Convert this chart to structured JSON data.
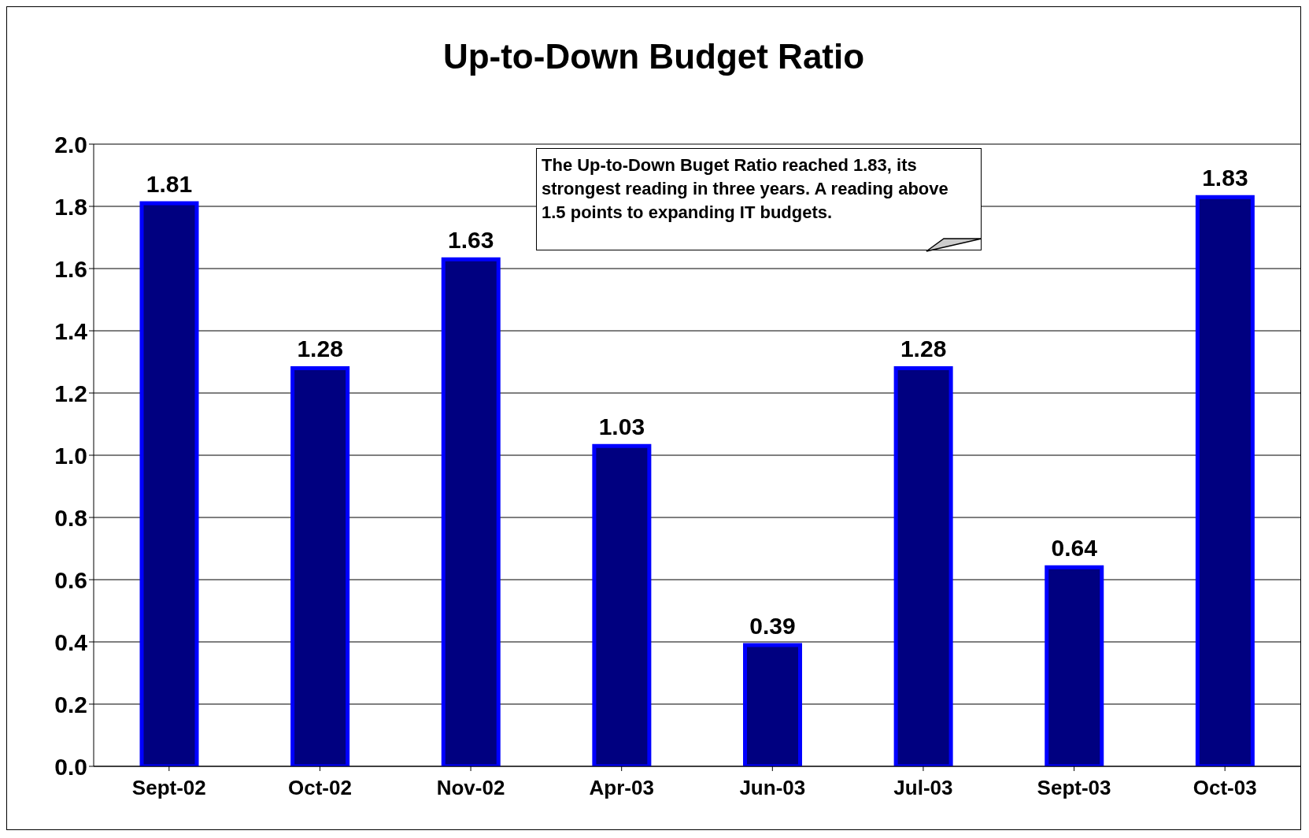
{
  "chart_data": {
    "type": "bar",
    "title": "Up-to-Down Budget Ratio",
    "categories": [
      "Sept-02",
      "Oct-02",
      "Nov-02",
      "Apr-03",
      "Jun-03",
      "Jul-03",
      "Sept-03",
      "Oct-03"
    ],
    "values": [
      1.81,
      1.28,
      1.63,
      1.03,
      0.39,
      1.28,
      0.64,
      1.83
    ],
    "color": "#000080",
    "ylim": [
      0,
      2
    ],
    "yticks": [
      {
        "value": 0,
        "label": "0.0"
      },
      {
        "value": 0.2,
        "label": "0.2"
      },
      {
        "value": 0.4,
        "label": "0.4"
      },
      {
        "value": 0.6,
        "label": "0.6"
      },
      {
        "value": 0.8,
        "label": "0.8"
      },
      {
        "value": 1,
        "label": "1.0"
      },
      {
        "value": 1.2,
        "label": "1.2"
      },
      {
        "value": 1.4,
        "label": "1.4"
      },
      {
        "value": 1.6,
        "label": "1.6"
      },
      {
        "value": 1.8,
        "label": "1.8"
      },
      {
        "value": 2,
        "label": "2.0"
      }
    ],
    "grid": "y",
    "data_labels": true,
    "annotations": [
      "The Up-to-Down Buget Ratio reached 1.83, its strongest reading in three years.  A reading above 1.5 points to expanding IT budgets."
    ]
  }
}
